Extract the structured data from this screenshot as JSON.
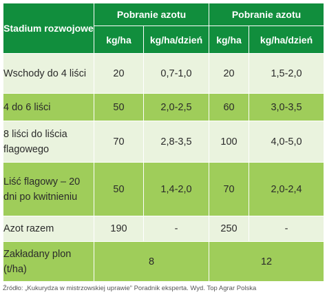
{
  "table": {
    "header": {
      "stage": "Stadium rozwojowe",
      "group1": "Pobranie azotu",
      "group2": "Pobranie azotu",
      "sub": [
        "kg/ha",
        "kg/ha/dzień",
        "kg/ha",
        "kg/ha/dzień"
      ]
    },
    "rows": [
      {
        "stage": "Wschody do 4 liści",
        "c1": "20",
        "c2": "0,7-1,0",
        "c3": "20",
        "c4": "1,5-2,0"
      },
      {
        "stage": "4 do 6 liści",
        "c1": "50",
        "c2": "2,0-2,5",
        "c3": "60",
        "c4": "3,0-3,5"
      },
      {
        "stage": "8 liści do liścia flagowego",
        "c1": "70",
        "c2": "2,8-3,5",
        "c3": "100",
        "c4": "4,0-5,0"
      },
      {
        "stage": "Liść flagowy – 20 dni po kwitnieniu",
        "c1": "50",
        "c2": "1,4-2,0",
        "c3": "70",
        "c4": "2,0-2,4"
      },
      {
        "stage": "Azot razem",
        "c1": "190",
        "c2": "-",
        "c3": "250",
        "c4": "-"
      }
    ],
    "yield_row": {
      "stage": "Zakładany plon (t/ha)",
      "v1": "8",
      "v2": "12"
    }
  },
  "source": "Źródło: „Kukurydza w mistrzowskiej uprawie” Poradnik eksperta. Wyd. Top Agrar Polska",
  "colors": {
    "header": "#118e3d",
    "row_light": "#eaf3de",
    "row_dark": "#9fcd5a"
  }
}
